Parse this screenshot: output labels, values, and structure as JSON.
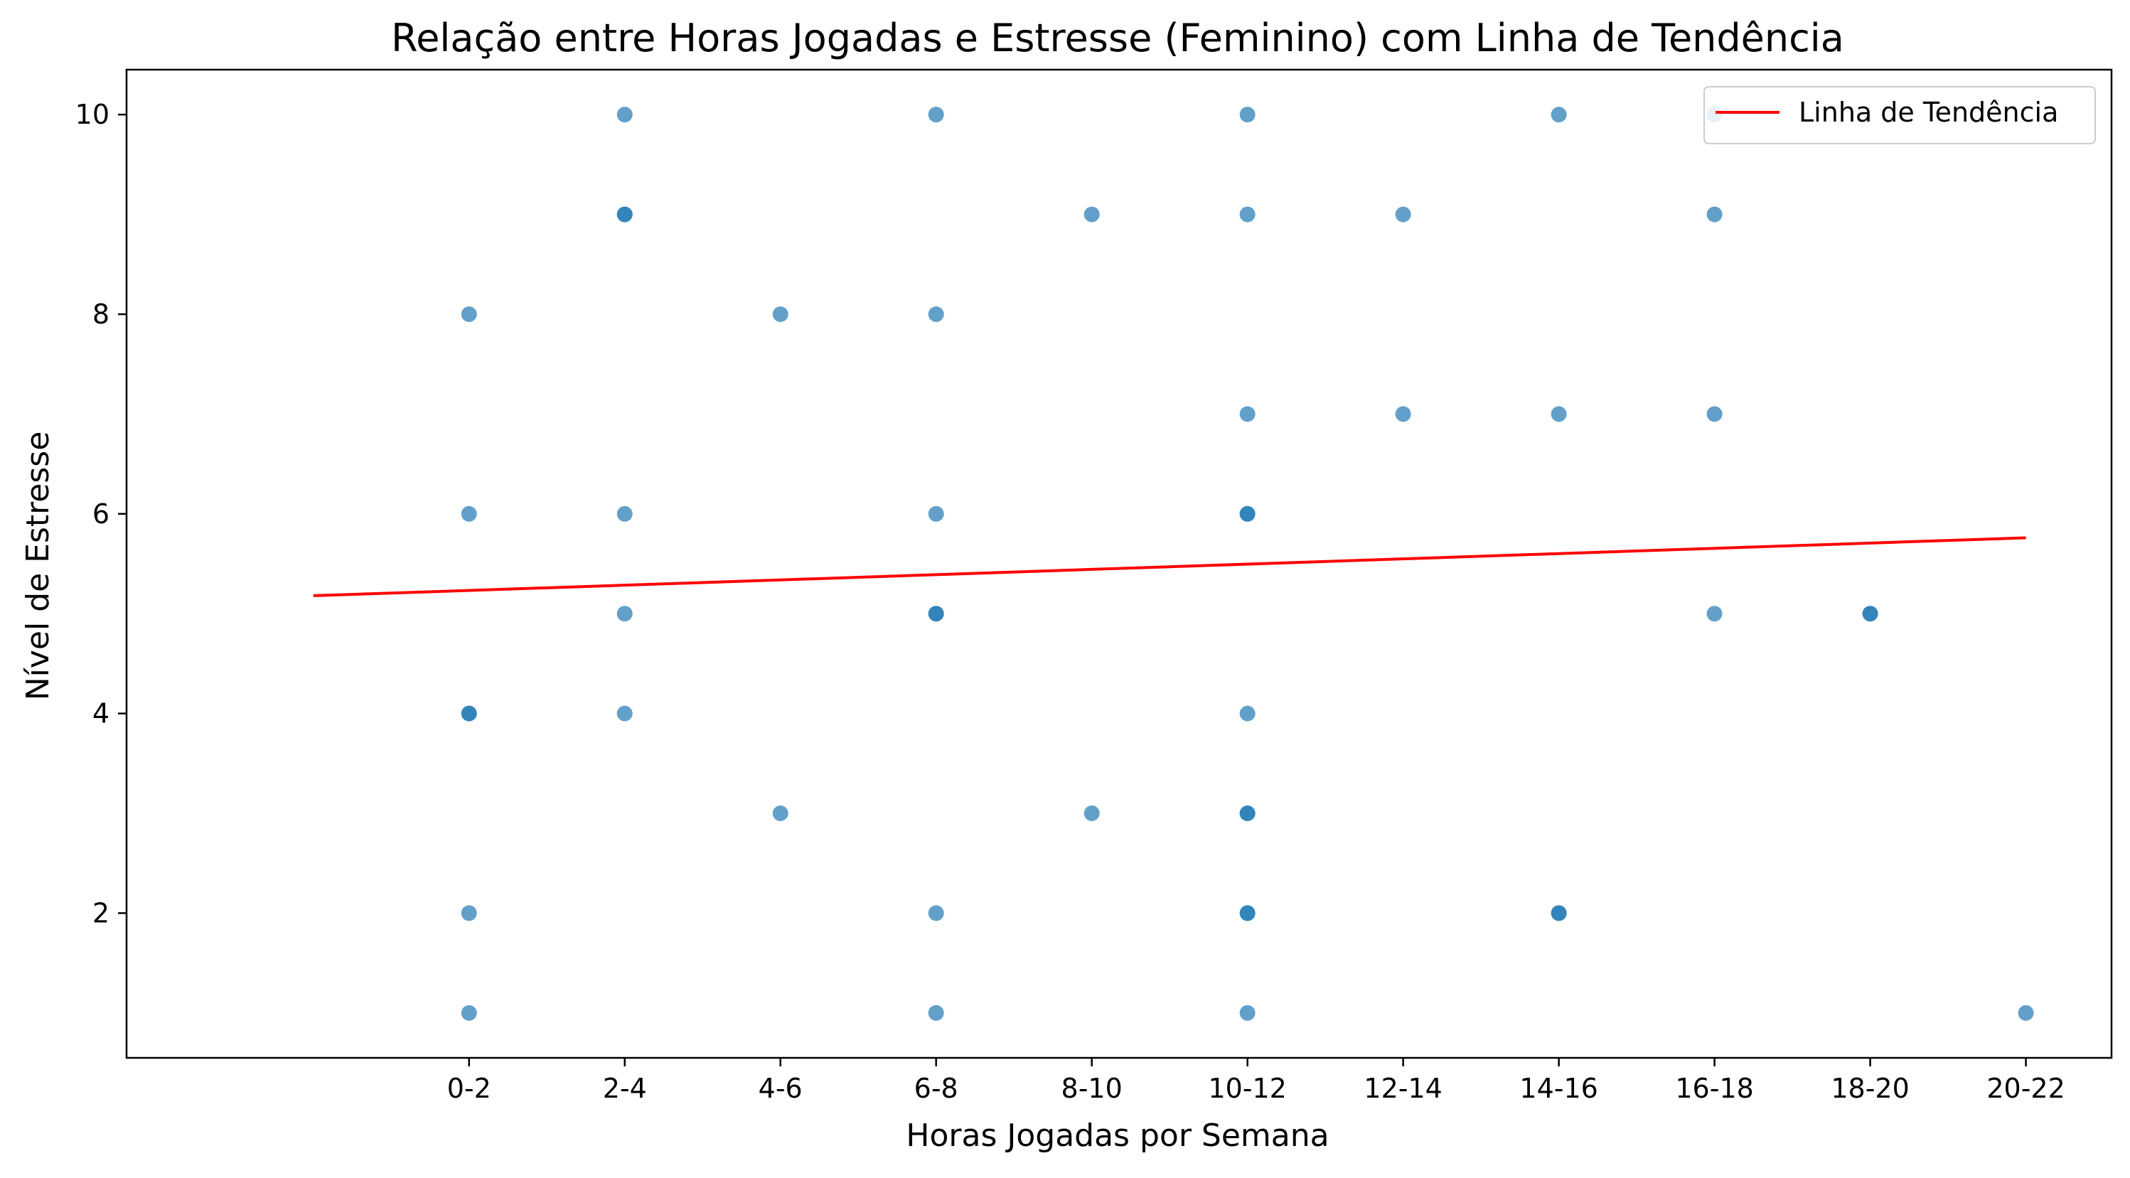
{
  "chart_data": {
    "type": "scatter",
    "title": "Relação entre Horas Jogadas e Estresse (Feminino) com Linha de Tendência",
    "xlabel": "Horas Jogadas por Semana",
    "ylabel": "Nível de Estresse",
    "categories": [
      "0-2",
      "2-4",
      "4-6",
      "6-8",
      "8-10",
      "10-12",
      "12-14",
      "14-16",
      "16-18",
      "18-20",
      "20-22"
    ],
    "x_range": [
      -2.2,
      10.55
    ],
    "ylim": [
      0.55,
      10.45
    ],
    "yticks": [
      2,
      4,
      6,
      8,
      10
    ],
    "grid": false,
    "legend_position": "top-right",
    "points": [
      {
        "x": "0-2",
        "y": 8
      },
      {
        "x": "0-2",
        "y": 6
      },
      {
        "x": "0-2",
        "y": 4
      },
      {
        "x": "0-2",
        "y": 4
      },
      {
        "x": "0-2",
        "y": 2
      },
      {
        "x": "0-2",
        "y": 1
      },
      {
        "x": "2-4",
        "y": 10
      },
      {
        "x": "2-4",
        "y": 9
      },
      {
        "x": "2-4",
        "y": 9
      },
      {
        "x": "2-4",
        "y": 6
      },
      {
        "x": "2-4",
        "y": 5
      },
      {
        "x": "2-4",
        "y": 4
      },
      {
        "x": "4-6",
        "y": 8
      },
      {
        "x": "4-6",
        "y": 3
      },
      {
        "x": "6-8",
        "y": 10
      },
      {
        "x": "6-8",
        "y": 8
      },
      {
        "x": "6-8",
        "y": 6
      },
      {
        "x": "6-8",
        "y": 5
      },
      {
        "x": "6-8",
        "y": 5
      },
      {
        "x": "6-8",
        "y": 2
      },
      {
        "x": "6-8",
        "y": 1
      },
      {
        "x": "8-10",
        "y": 9
      },
      {
        "x": "8-10",
        "y": 3
      },
      {
        "x": "10-12",
        "y": 10
      },
      {
        "x": "10-12",
        "y": 9
      },
      {
        "x": "10-12",
        "y": 7
      },
      {
        "x": "10-12",
        "y": 6
      },
      {
        "x": "10-12",
        "y": 6
      },
      {
        "x": "10-12",
        "y": 4
      },
      {
        "x": "10-12",
        "y": 3
      },
      {
        "x": "10-12",
        "y": 3
      },
      {
        "x": "10-12",
        "y": 2
      },
      {
        "x": "10-12",
        "y": 2
      },
      {
        "x": "10-12",
        "y": 1
      },
      {
        "x": "12-14",
        "y": 9
      },
      {
        "x": "12-14",
        "y": 7
      },
      {
        "x": "14-16",
        "y": 10
      },
      {
        "x": "14-16",
        "y": 7
      },
      {
        "x": "14-16",
        "y": 2
      },
      {
        "x": "14-16",
        "y": 2
      },
      {
        "x": "16-18",
        "y": 10
      },
      {
        "x": "16-18",
        "y": 9
      },
      {
        "x": "16-18",
        "y": 7
      },
      {
        "x": "16-18",
        "y": 5
      },
      {
        "x": "18-20",
        "y": 5
      },
      {
        "x": "18-20",
        "y": 5
      },
      {
        "x": "20-22",
        "y": 1
      }
    ],
    "trend_line": {
      "name": "Linha de Tendência",
      "color": "#ff0000",
      "y_start": 5.18,
      "y_end": 5.76
    },
    "point_color": "#1f77b4"
  }
}
